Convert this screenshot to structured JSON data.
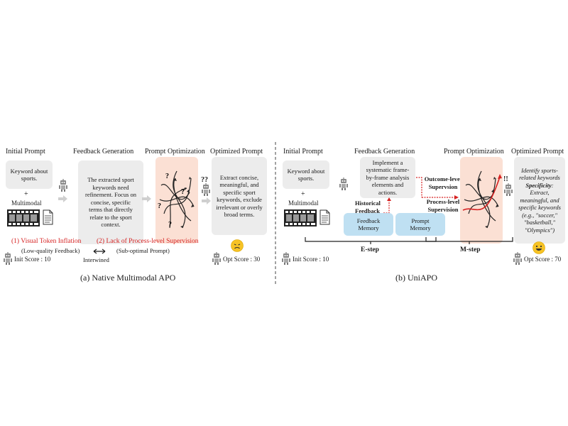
{
  "left": {
    "headers": {
      "initial": "Initial Prompt",
      "feedback": "Feedback Generation",
      "optimization": "Prompt Optimization",
      "optimized": "Optimized Prompt"
    },
    "initial_box": "Keyword about sports.",
    "plus": "+",
    "multimodal": "Multimodal",
    "feedback_box": "The extracted sport keywords need refinement. Focus on concise, specific terms that directly relate to the sport context.",
    "optimized_box": "Extract concise, meaningful, and specific sport keywords, exclude irrelevant or overly broad terms.",
    "question_marks": "??",
    "issue1": "(1) Visual Token Inflation",
    "issue2": "(2) Lack of Process-level Supervision",
    "issue1_sub": "(Low-quality Feedback)",
    "issue2_sub": "(Sub-optimal Prompt)",
    "intertwined": "Interwined",
    "init_score": "Init Score : 10",
    "opt_score": "Opt Score : 30",
    "caption": "(a) Native Multimodal APO"
  },
  "right": {
    "headers": {
      "initial": "Initial Prompt",
      "feedback": "Feedback Generation",
      "optimization": "Prompt Optimization",
      "optimized": "Optimized Prompt"
    },
    "initial_box": "Keyword about sports.",
    "plus": "+",
    "multimodal": "Multimodal",
    "feedback_box": "Implement a systematic frame-by-frame analysis elements and actions.",
    "historical_feedback": "Historical Feedback",
    "feedback_memory": "Feedback Memory",
    "prompt_memory": "Prompt Memory",
    "outcome_supervision": "Outcome-level Supervsion",
    "process_supervision": "Process-level Supervision",
    "exclaim": "!!",
    "optimized_line1": "Identify sports-related keywords",
    "optimized_specificity": "Specificity",
    "optimized_line2": ": Extract, meaningful, and specific keywords (e.g., \"soccer,\" \"basketball,\" \"Olympics\")",
    "e_step": "E-step",
    "m_step": "M-step",
    "init_score": "Init Score : 10",
    "opt_score": "Opt Score : 70",
    "caption": "(b) UniAPO"
  },
  "colors": {
    "box_gray": "#ececec",
    "optimization_peach": "#fbe0d4",
    "memory_blue": "#bfe0f2",
    "issue_red": "#d62222",
    "emoji_yellow": "#f7c325"
  },
  "icons": [
    "robot-icon",
    "film-strip-icon",
    "document-icon",
    "gray-arrow-icon",
    "double-arrow-icon",
    "sad-face-icon",
    "happy-face-icon",
    "question-mark-icon"
  ]
}
